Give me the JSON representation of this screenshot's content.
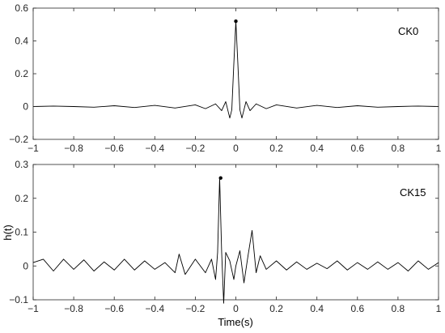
{
  "chart_data": [
    {
      "type": "line",
      "legend_text": "CK0",
      "legend_placement": "top-right",
      "xlim": [
        -1,
        1
      ],
      "ylim": [
        -0.2,
        0.6
      ],
      "xticks": [
        "−1",
        "−0.8",
        "−0.6",
        "−0.4",
        "−0.2",
        "0",
        "0.2",
        "0.4",
        "0.6",
        "0.8",
        "1"
      ],
      "yticks": [
        "−0.2",
        "0",
        "0.2",
        "0.4",
        "0.6"
      ],
      "xtick_values": [
        -1,
        -0.8,
        -0.6,
        -0.4,
        -0.2,
        0,
        0.2,
        0.4,
        0.6,
        0.8,
        1
      ],
      "ytick_values": [
        -0.2,
        0,
        0.2,
        0.4,
        0.6
      ],
      "grid": false,
      "series": [
        {
          "x": [
            -1,
            -0.9,
            -0.8,
            -0.7,
            -0.6,
            -0.5,
            -0.4,
            -0.3,
            -0.2,
            -0.15,
            -0.1,
            -0.07,
            -0.05,
            -0.03,
            -0.02,
            -0.01,
            0,
            0.01,
            0.02,
            0.03,
            0.05,
            0.07,
            0.1,
            0.15,
            0.2,
            0.3,
            0.4,
            0.5,
            0.6,
            0.7,
            0.8,
            0.9,
            1
          ],
          "y": [
            0.0,
            0.003,
            0.0,
            -0.004,
            0.005,
            -0.006,
            0.007,
            -0.009,
            0.01,
            -0.013,
            0.016,
            -0.025,
            0.03,
            -0.07,
            -0.02,
            0.26,
            0.52,
            0.26,
            -0.02,
            -0.07,
            0.03,
            -0.025,
            0.016,
            -0.013,
            0.01,
            -0.009,
            0.007,
            -0.006,
            0.005,
            -0.004,
            0.0,
            0.003,
            0.0
          ]
        }
      ],
      "peak": {
        "x": 0,
        "y": 0.52
      }
    },
    {
      "type": "line",
      "legend_text": "CK15",
      "legend_placement": "top-right",
      "xlabel": "Time(s)",
      "ylabel": "h(t)",
      "xlim": [
        -1,
        1
      ],
      "ylim": [
        -0.1,
        0.3
      ],
      "xticks": [
        "−1",
        "−0.8",
        "−0.6",
        "−0.4",
        "−0.2",
        "0",
        "0.2",
        "0.4",
        "0.6",
        "0.8",
        "1"
      ],
      "yticks": [
        "−0.1",
        "0",
        "0.1",
        "0.2",
        "0.3"
      ],
      "xtick_values": [
        -1,
        -0.8,
        -0.6,
        -0.4,
        -0.2,
        0,
        0.2,
        0.4,
        0.6,
        0.8,
        1
      ],
      "ytick_values": [
        -0.1,
        0,
        0.1,
        0.2,
        0.3
      ],
      "grid": false,
      "series": [
        {
          "x": [
            -1,
            -0.95,
            -0.9,
            -0.85,
            -0.8,
            -0.75,
            -0.7,
            -0.65,
            -0.6,
            -0.55,
            -0.5,
            -0.45,
            -0.4,
            -0.35,
            -0.3,
            -0.28,
            -0.25,
            -0.2,
            -0.15,
            -0.12,
            -0.1,
            -0.09,
            -0.08,
            -0.07,
            -0.06,
            -0.05,
            -0.03,
            -0.01,
            0.0,
            0.02,
            0.04,
            0.06,
            0.08,
            0.1,
            0.12,
            0.15,
            0.2,
            0.25,
            0.3,
            0.35,
            0.4,
            0.45,
            0.5,
            0.55,
            0.6,
            0.65,
            0.7,
            0.75,
            0.8,
            0.85,
            0.9,
            0.95,
            1.0
          ],
          "y": [
            0.01,
            0.02,
            -0.015,
            0.02,
            -0.01,
            0.018,
            -0.015,
            0.012,
            -0.012,
            0.02,
            -0.012,
            0.015,
            -0.01,
            0.01,
            -0.02,
            0.035,
            -0.025,
            0.02,
            -0.02,
            0.02,
            -0.04,
            0.04,
            0.26,
            0.04,
            -0.11,
            0.04,
            0.015,
            -0.04,
            0.0,
            0.045,
            -0.05,
            0.03,
            0.105,
            -0.02,
            0.03,
            -0.01,
            0.015,
            -0.012,
            0.012,
            -0.01,
            0.008,
            -0.008,
            0.015,
            -0.012,
            0.01,
            -0.01,
            0.012,
            -0.01,
            0.01,
            -0.015,
            0.015,
            -0.01,
            0.01
          ]
        }
      ],
      "peak": {
        "x": -0.075,
        "y": 0.26
      }
    }
  ]
}
